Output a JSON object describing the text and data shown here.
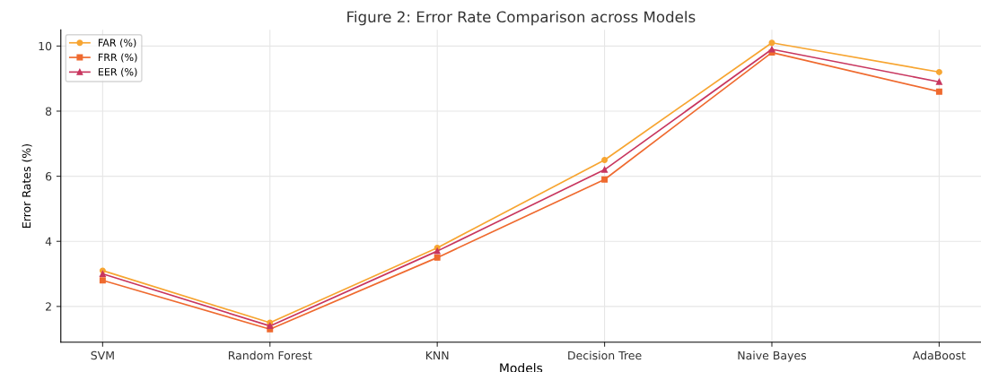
{
  "chart_data": {
    "type": "line",
    "title": "Figure 2: Error Rate Comparison across Models",
    "xlabel": "Models",
    "ylabel": "Error Rates (%)",
    "categories": [
      "SVM",
      "Random Forest",
      "KNN",
      "Decision Tree",
      "Naive Bayes",
      "AdaBoost"
    ],
    "series": [
      {
        "name": "FAR (%)",
        "color": "#f7a531",
        "marker": "circle",
        "values": [
          3.1,
          1.5,
          3.8,
          6.5,
          10.1,
          9.2
        ]
      },
      {
        "name": "FRR (%)",
        "color": "#ef6a2f",
        "marker": "square",
        "values": [
          2.8,
          1.3,
          3.5,
          5.9,
          9.8,
          8.6
        ]
      },
      {
        "name": "EER (%)",
        "color": "#c8365f",
        "marker": "triangle",
        "values": [
          3.0,
          1.4,
          3.7,
          6.2,
          9.9,
          8.9
        ]
      }
    ],
    "ylim": [
      0.9,
      10.5
    ],
    "yticks": [
      2,
      4,
      6,
      8,
      10
    ],
    "grid": true,
    "legend": "top left",
    "line_style": "solid"
  }
}
